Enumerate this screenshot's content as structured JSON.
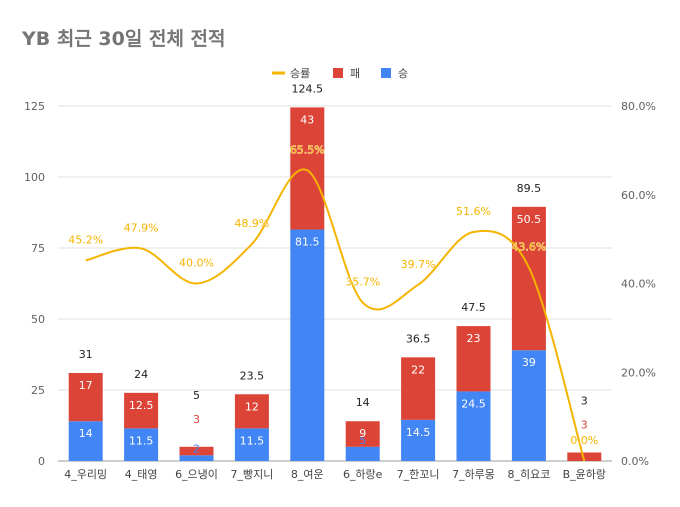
{
  "chart_data": {
    "type": "bar",
    "stacked": true,
    "title": "YB 최근 30일 전체 전적",
    "categories": [
      "4_우리밍",
      "4_태영",
      "6_으냉이",
      "7_빵지니",
      "8_여운",
      "6_하랑e",
      "7_한꼬니",
      "7_하루몽",
      "8_히요코",
      "B_윤하랑"
    ],
    "series": [
      {
        "name": "승",
        "type": "bar",
        "color": "#4285f4",
        "values": [
          14,
          11.5,
          2,
          11.5,
          81.5,
          5,
          14.5,
          24.5,
          39,
          0
        ]
      },
      {
        "name": "패",
        "type": "bar",
        "color": "#db4437",
        "values": [
          17,
          12.5,
          3,
          12,
          43,
          9,
          22,
          23,
          50.5,
          3
        ]
      },
      {
        "name": "승률",
        "type": "line",
        "axis": "right",
        "color": "#f4b400",
        "values": [
          45.2,
          47.9,
          40.0,
          48.9,
          65.5,
          35.7,
          39.7,
          51.6,
          43.6,
          0.0
        ]
      }
    ],
    "totals": [
      31,
      24,
      5,
      23.5,
      124.5,
      14,
      36.5,
      47.5,
      89.5,
      3
    ],
    "win_labels": [
      "14",
      "11.5",
      "2",
      "11.5",
      "81.5",
      "5",
      "14.5",
      "24.5",
      "39",
      ""
    ],
    "loss_labels": [
      "17",
      "12.5",
      "3",
      "12",
      "43",
      "9",
      "22",
      "23",
      "50.5",
      "3"
    ],
    "total_labels": [
      "31",
      "24",
      "5",
      "23.5",
      "124.5",
      "14",
      "36.5",
      "47.5",
      "89.5",
      "3"
    ],
    "rate_labels": [
      "45.2%",
      "47.9%",
      "40.0%",
      "48.9%",
      "65.5%",
      "35.7%",
      "39.7%",
      "51.6%",
      "43.6%",
      "0.0%"
    ],
    "ylim_left": [
      0,
      125
    ],
    "yticks_left": [
      0,
      25,
      50,
      75,
      100,
      125
    ],
    "ytick_labels_left": [
      "0",
      "25",
      "50",
      "75",
      "100",
      "125"
    ],
    "ylim_right": [
      0,
      80
    ],
    "yticks_right": [
      0,
      20,
      40,
      60,
      80
    ],
    "ytick_labels_right": [
      "0.0%",
      "20.0%",
      "40.0%",
      "60.0%",
      "80.0%"
    ],
    "legend": {
      "position": "top",
      "labels": [
        "승률",
        "패",
        "승"
      ]
    },
    "grid": true,
    "colors": {
      "win": "#4285f4",
      "loss": "#db4437",
      "rate": "#f4b400",
      "grid": "#e0e0e0",
      "title": "#757575"
    }
  }
}
